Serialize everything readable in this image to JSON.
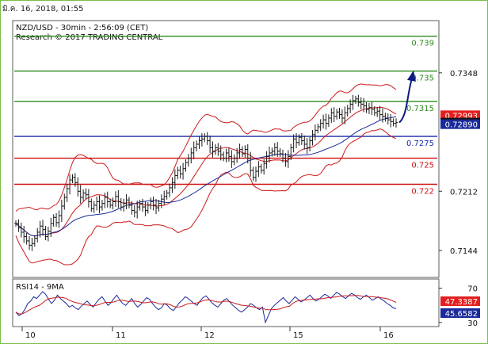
{
  "timestamp": "มิ.ค. 16, 2018, 01:55",
  "header": {
    "line1": "NZD/USD - 30min - 2:56:09 (CET)",
    "line2": "Research © 2017 TRADING CENTRAL"
  },
  "colors": {
    "frame_border": "#7bbf4a",
    "price_candles": "#1a1a1a",
    "bollinger": "#cc1a1a",
    "moving_average": "#1a2a9a",
    "resistance": "#2e8b1f",
    "pivot": "#1a2aa8",
    "support": "#d01010",
    "arrow": "#0d1a80",
    "rsi_line": "#1a2a9a",
    "rsi_ma": "#cc1a1a",
    "badge_red": "#e32020",
    "badge_black": "#111111",
    "badge_blue": "#1a2a9a"
  },
  "chart_data": [
    {
      "type": "line",
      "name": "price",
      "ylim": [
        0.7114,
        0.7407
      ],
      "y_ticks": [
        "0.7348",
        "0.7212",
        "0.7144"
      ],
      "x_ticks": [
        "10",
        "11",
        "12",
        "15",
        "16"
      ],
      "levels": [
        {
          "label": "0.739",
          "value": 0.739,
          "kind": "resistance"
        },
        {
          "label": "0.735",
          "value": 0.735,
          "kind": "resistance"
        },
        {
          "label": "0.7315",
          "value": 0.7315,
          "kind": "resistance"
        },
        {
          "label": "0.7275",
          "value": 0.7275,
          "kind": "pivot"
        },
        {
          "label": "0.725",
          "value": 0.725,
          "kind": "support"
        },
        {
          "label": "0.722",
          "value": 0.722,
          "kind": "support"
        }
      ],
      "badges": [
        {
          "label": "0.72993",
          "value": 0.72993,
          "kind": "red"
        },
        {
          "label": "0.72909",
          "value": 0.72909,
          "kind": "black"
        },
        {
          "label": "0.72890",
          "value": 0.7289,
          "kind": "blue"
        }
      ],
      "close": [
        0.7175,
        0.717,
        0.7165,
        0.716,
        0.7155,
        0.715,
        0.7152,
        0.7158,
        0.7165,
        0.7172,
        0.7168,
        0.716,
        0.7166,
        0.7175,
        0.7182,
        0.7176,
        0.7184,
        0.7195,
        0.7205,
        0.7215,
        0.7225,
        0.7228,
        0.7222,
        0.7212,
        0.7205,
        0.721,
        0.7208,
        0.72,
        0.7192,
        0.7196,
        0.72,
        0.7194,
        0.7198,
        0.7205,
        0.72,
        0.7196,
        0.72,
        0.7206,
        0.72,
        0.7194,
        0.7198,
        0.7202,
        0.7196,
        0.719,
        0.7188,
        0.7194,
        0.7198,
        0.7194,
        0.719,
        0.7196,
        0.72,
        0.7196,
        0.7193,
        0.7198,
        0.7203,
        0.7206,
        0.721,
        0.7216,
        0.7222,
        0.723,
        0.7236,
        0.7232,
        0.7238,
        0.7245,
        0.725,
        0.7256,
        0.7262,
        0.7266,
        0.727,
        0.7272,
        0.7275,
        0.727,
        0.7262,
        0.7258,
        0.7262,
        0.7258,
        0.7254,
        0.725,
        0.7256,
        0.7252,
        0.7246,
        0.725,
        0.7256,
        0.726,
        0.7255,
        0.726,
        0.725,
        0.7236,
        0.7228,
        0.7235,
        0.724,
        0.7236,
        0.7244,
        0.7252,
        0.7256,
        0.7258,
        0.7262,
        0.7258,
        0.7255,
        0.725,
        0.7246,
        0.7252,
        0.7262,
        0.7272,
        0.7268,
        0.7274,
        0.727,
        0.7266,
        0.7262,
        0.727,
        0.7277,
        0.7282,
        0.7286,
        0.729,
        0.7294,
        0.729,
        0.7296,
        0.7302,
        0.7298,
        0.7303,
        0.73,
        0.7296,
        0.7302,
        0.7307,
        0.7312,
        0.7316,
        0.7318,
        0.7314,
        0.7312,
        0.731,
        0.7306,
        0.7308,
        0.7306,
        0.7302,
        0.7304,
        0.73,
        0.7298,
        0.7296,
        0.7294,
        0.7292,
        0.729,
        0.7291
      ]
    },
    {
      "type": "line",
      "name": "RSI14 - 9MA",
      "ylim": [
        27,
        78
      ],
      "y_ticks": [
        "70",
        "30"
      ],
      "badges": [
        {
          "label": "47.3387",
          "value": 47.3387,
          "kind": "red"
        },
        {
          "label": "45.6582",
          "value": 45.6582,
          "kind": "blue"
        }
      ],
      "rsi": [
        42,
        38,
        40,
        45,
        52,
        55,
        60,
        58,
        62,
        66,
        63,
        57,
        52,
        56,
        62,
        58,
        55,
        52,
        48,
        50,
        47,
        45,
        49,
        52,
        55,
        51,
        48,
        53,
        57,
        60,
        55,
        50,
        53,
        58,
        62,
        56,
        52,
        50,
        54,
        58,
        52,
        48,
        51,
        55,
        59,
        57,
        52,
        48,
        45,
        47,
        52,
        50,
        46,
        44,
        48,
        53,
        56,
        60,
        58,
        55,
        52,
        50,
        55,
        59,
        61,
        57,
        53,
        50,
        48,
        52,
        56,
        58,
        54,
        50,
        47,
        44,
        42,
        45,
        48,
        52,
        50,
        47,
        45,
        48,
        30,
        38,
        46,
        50,
        53,
        56,
        59,
        55,
        52,
        56,
        60,
        57,
        54,
        56,
        59,
        62,
        58,
        55,
        57,
        60,
        63,
        61,
        58,
        62,
        65,
        63,
        60,
        58,
        61,
        64,
        62,
        59,
        57,
        60,
        62,
        59,
        56,
        58,
        60,
        57,
        55,
        52,
        50,
        47,
        46
      ]
    }
  ]
}
